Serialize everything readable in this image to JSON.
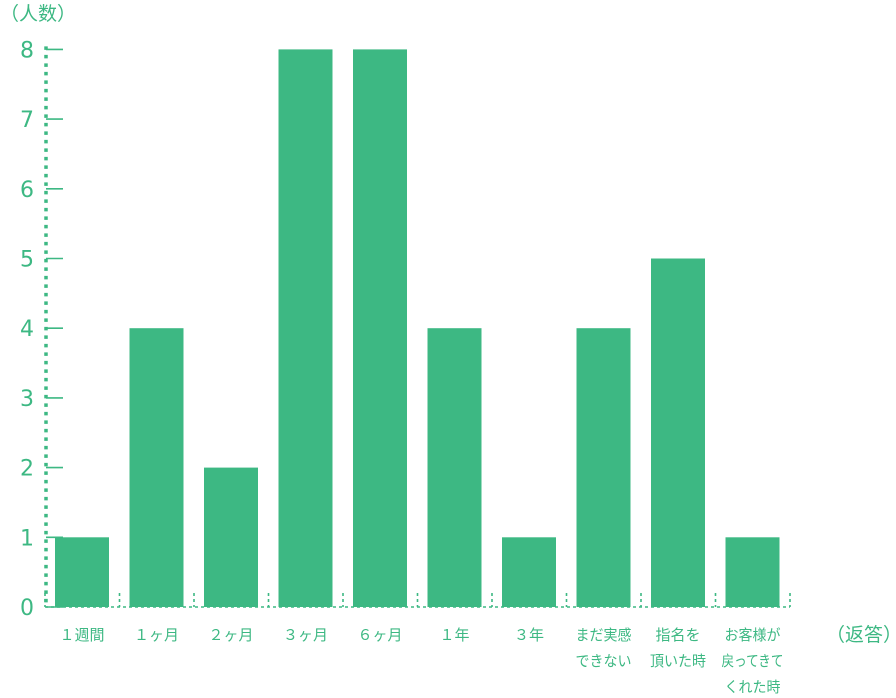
{
  "chart_data": {
    "type": "bar",
    "ylabel": "（人数）",
    "xlabel": "（返答）",
    "categories": [
      [
        "１週間"
      ],
      [
        "１ヶ月"
      ],
      [
        "２ヶ月"
      ],
      [
        "３ヶ月"
      ],
      [
        "６ヶ月"
      ],
      [
        "１年"
      ],
      [
        "３年"
      ],
      [
        "まだ実感",
        "できない"
      ],
      [
        "指名を",
        "頂いた時"
      ],
      [
        "お客様が",
        "戻ってきて",
        "くれた時"
      ]
    ],
    "values": [
      1,
      4,
      2,
      8,
      8,
      4,
      1,
      4,
      5,
      1
    ],
    "yticks": [
      "0",
      "1",
      "2",
      "3",
      "4",
      "5",
      "6",
      "7",
      "8"
    ],
    "ylim": [
      0,
      8
    ],
    "grid": false,
    "legend": "none",
    "colors": {
      "bar": "#3db883",
      "axis": "#3db883",
      "text": "#3db883"
    }
  }
}
